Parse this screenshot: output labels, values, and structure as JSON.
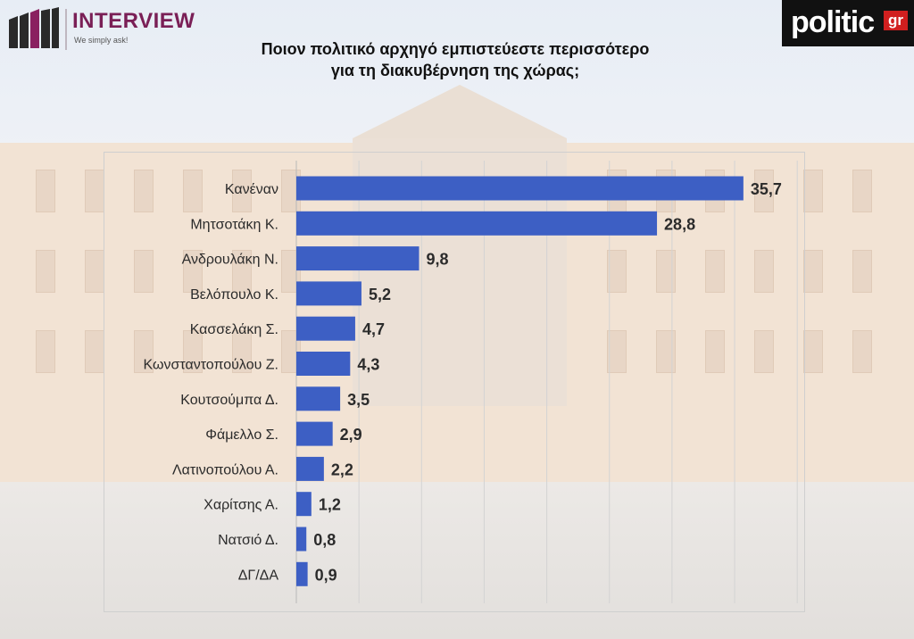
{
  "brand": {
    "name": "INTERVIEW",
    "tagline": "We simply ask!"
  },
  "publisher": {
    "name": "politic",
    "suffix": "gr"
  },
  "chart_data": {
    "type": "bar",
    "orientation": "horizontal",
    "title": "Ποιον πολιτικό αρχηγό εμπιστεύεστε περισσότερο για τη διακυβέρνηση της χώρας;",
    "title_lines": [
      "Ποιον πολιτικό αρχηγό εμπιστεύεστε περισσότερο",
      "για τη διακυβέρνηση της χώρας;"
    ],
    "categories": [
      "Κανέναν",
      "Μητσοτάκη Κ.",
      "Ανδρουλάκη Ν.",
      "Βελόπουλο Κ.",
      "Κασσελάκη Σ.",
      "Κωνσταντοπούλου Ζ.",
      "Κουτσούμπα Δ.",
      "Φάμελλο Σ.",
      "Λατινοπούλου Α.",
      "Χαρίτσης Α.",
      "Νατσιό Δ.",
      "ΔΓ/ΔΑ"
    ],
    "values": [
      35.7,
      28.8,
      9.8,
      5.2,
      4.7,
      4.3,
      3.5,
      2.9,
      2.2,
      1.2,
      0.8,
      0.9
    ],
    "value_labels": [
      "35,7",
      "28,8",
      "9,8",
      "5,2",
      "4,7",
      "4,3",
      "3,5",
      "2,9",
      "2,2",
      "1,2",
      "0,8",
      "0,9"
    ],
    "xlim": [
      0,
      40
    ],
    "grid": true,
    "bar_color": "#3d5fc4",
    "xlabel": "",
    "ylabel": ""
  }
}
